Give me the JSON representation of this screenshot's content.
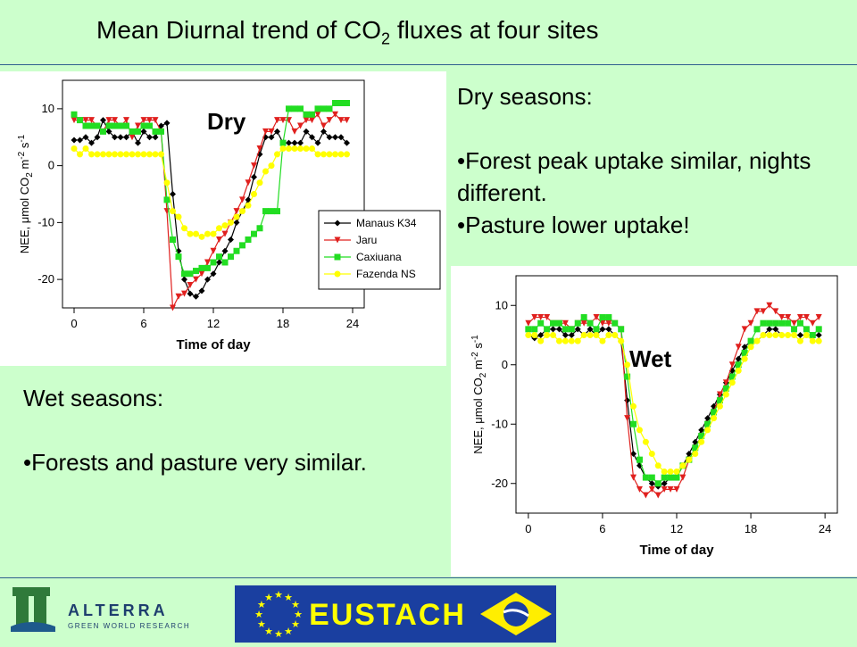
{
  "title": {
    "main": "Mean Diurnal trend of CO",
    "sub": "2",
    "rest": " fluxes at four sites"
  },
  "dry_text": {
    "heading": "Dry seasons:",
    "b1": "•Forest peak uptake similar, nights different.",
    "b2": "•Pasture lower uptake!"
  },
  "wet_text": {
    "heading": "Wet seasons:",
    "b1": "•Forests and pasture very similar."
  },
  "logos": {
    "alterra_name": "ALTERRA",
    "alterra_tagline": "GREEN WORLD RESEARCH",
    "eustach": "EUSTACH"
  },
  "colors": {
    "background": "#ccffcc",
    "rule": "#2e5e8e",
    "manaus": "#000000",
    "jaru": "#e0201e",
    "caxiuana": "#22dd22",
    "fazenda": "#ffff00",
    "eu_blue": "#1a3fa0",
    "eustach_text": "#ffff00"
  },
  "chart_data": [
    {
      "type": "line",
      "label": "Dry",
      "xlabel": "Time of day",
      "ylabel_parts": {
        "a": "NEE,  ",
        "b": "μ",
        "c": "mol CO",
        "d": "2",
        "e": " m",
        "f": "-2",
        "g": " s",
        "h": "-1"
      },
      "xticks": [
        0,
        6,
        12,
        18,
        24
      ],
      "yticks": [
        10,
        0,
        -10,
        -20
      ],
      "xlim": [
        -1,
        25
      ],
      "ylim": [
        -25,
        15
      ],
      "legend": [
        "Manaus K34",
        "Jaru",
        "Caxiuana",
        "Fazenda NS"
      ],
      "legend_position": "right",
      "x": [
        0,
        0.5,
        1,
        1.5,
        2,
        2.5,
        3,
        3.5,
        4,
        4.5,
        5,
        5.5,
        6,
        6.5,
        7,
        7.5,
        8,
        8.5,
        9,
        9.5,
        10,
        10.5,
        11,
        11.5,
        12,
        12.5,
        13,
        13.5,
        14,
        14.5,
        15,
        15.5,
        16,
        16.5,
        17,
        17.5,
        18,
        18.5,
        19,
        19.5,
        20,
        20.5,
        21,
        21.5,
        22,
        22.5,
        23,
        23.5
      ],
      "series": [
        {
          "name": "Manaus K34",
          "marker": "diamond",
          "values": [
            4.5,
            4.5,
            5,
            4,
            5,
            8,
            6,
            5,
            5,
            5,
            6,
            4,
            6,
            5,
            5,
            7,
            7.5,
            -5,
            -15,
            -20,
            -22.5,
            -23,
            -22,
            -20,
            -19,
            -17,
            -15,
            -13,
            -10,
            -8,
            -6,
            -2,
            2,
            5,
            5,
            6,
            4,
            4,
            4,
            4,
            6,
            5,
            4,
            6,
            5,
            5,
            5,
            4
          ]
        },
        {
          "name": "Jaru",
          "marker": "triangle",
          "values": [
            8,
            8,
            8,
            8,
            7,
            6,
            8,
            8,
            7,
            8,
            5,
            7,
            8,
            8,
            8,
            6,
            -8,
            -25,
            -23,
            -22.5,
            -21,
            -20,
            -19,
            -17,
            -15,
            -13,
            -12,
            -10,
            -8,
            -6,
            -3,
            0,
            3,
            6,
            6,
            8,
            8,
            8,
            6,
            7,
            8,
            8,
            9,
            7,
            8,
            9,
            8,
            8
          ]
        },
        {
          "name": "Caxiuana",
          "marker": "square",
          "values": [
            9,
            8,
            7,
            7,
            7,
            6,
            7,
            7,
            7,
            7,
            6,
            6,
            7,
            7,
            6,
            6,
            -6,
            -13,
            -16,
            -19,
            -19,
            -18.5,
            -18,
            -18,
            -17,
            -16,
            -17,
            -16,
            -15,
            -14,
            -13,
            -12,
            -11,
            -8,
            -8,
            -8,
            4,
            10,
            10,
            10,
            9,
            9,
            10,
            10,
            10,
            11,
            11,
            11
          ]
        },
        {
          "name": "Fazenda NS",
          "marker": "circle",
          "values": [
            3,
            2,
            3,
            2,
            2,
            2,
            2,
            2,
            2,
            2,
            2,
            2,
            2,
            2,
            2,
            2,
            -3,
            -8,
            -9,
            -11,
            -12,
            -12,
            -12.5,
            -12,
            -12,
            -11,
            -10.5,
            -10,
            -9,
            -8,
            -7,
            -5,
            -3,
            -1,
            0,
            2,
            3,
            3,
            3,
            3,
            3,
            3,
            2,
            2,
            2,
            2,
            2,
            2
          ]
        }
      ]
    },
    {
      "type": "line",
      "label": "Wet",
      "xlabel": "Time of day",
      "ylabel_parts": {
        "a": "NEE,  ",
        "b": "μ",
        "c": "mol CO",
        "d": "2",
        "e": " m",
        "f": "-2",
        "g": " s",
        "h": "-1"
      },
      "xticks": [
        0,
        6,
        12,
        18,
        24
      ],
      "yticks": [
        10,
        0,
        -10,
        -20
      ],
      "xlim": [
        -1,
        25
      ],
      "ylim": [
        -25,
        15
      ],
      "x": [
        0,
        0.5,
        1,
        1.5,
        2,
        2.5,
        3,
        3.5,
        4,
        4.5,
        5,
        5.5,
        6,
        6.5,
        7,
        7.5,
        8,
        8.5,
        9,
        9.5,
        10,
        10.5,
        11,
        11.5,
        12,
        12.5,
        13,
        13.5,
        14,
        14.5,
        15,
        15.5,
        16,
        16.5,
        17,
        17.5,
        18,
        18.5,
        19,
        19.5,
        20,
        20.5,
        21,
        21.5,
        22,
        22.5,
        23,
        23.5
      ],
      "series": [
        {
          "name": "Manaus K34",
          "marker": "diamond",
          "values": [
            5,
            4.5,
            5,
            6,
            6,
            6,
            5,
            5,
            6,
            5,
            6,
            5,
            6,
            6,
            5,
            4,
            -6,
            -15,
            -17,
            -19,
            -20,
            -20.5,
            -20,
            -19,
            -19,
            -17,
            -15,
            -13,
            -11,
            -9,
            -7,
            -5,
            -3,
            -1,
            1,
            3,
            4,
            4,
            5,
            6,
            6,
            5,
            5,
            5,
            5,
            5,
            5,
            5
          ]
        },
        {
          "name": "Jaru",
          "marker": "triangle",
          "values": [
            7,
            8,
            8,
            8,
            7,
            7,
            7,
            6,
            7,
            7,
            7,
            8,
            7,
            7,
            7,
            6,
            -9,
            -19,
            -21,
            -22,
            -21,
            -22,
            -21,
            -21,
            -21,
            -19,
            -16,
            -14,
            -12,
            -10,
            -8,
            -5,
            -3,
            0,
            3,
            6,
            7,
            9,
            9,
            10,
            9,
            8,
            8,
            7,
            8,
            8,
            7,
            8
          ]
        },
        {
          "name": "Caxiuana",
          "marker": "square",
          "values": [
            6,
            6,
            7,
            6,
            7,
            7,
            6,
            6,
            7,
            8,
            7,
            6,
            8,
            8,
            7,
            6,
            -2,
            -10,
            -16,
            -19,
            -19,
            -20,
            -19,
            -19,
            -19,
            -17,
            -16,
            -14,
            -12,
            -10,
            -8,
            -6,
            -4,
            -2,
            0,
            2,
            4,
            6,
            7,
            7,
            7,
            7,
            7,
            6,
            7,
            6,
            5,
            6
          ]
        },
        {
          "name": "Fazenda NS",
          "marker": "circle",
          "values": [
            5,
            5,
            4,
            5,
            5,
            4,
            4,
            4,
            4,
            5,
            5,
            5,
            4,
            5,
            5,
            4,
            0,
            -7,
            -11,
            -13,
            -15,
            -17,
            -18,
            -18,
            -18,
            -17,
            -16,
            -15,
            -13,
            -11,
            -9,
            -7,
            -5,
            -3,
            -1,
            1,
            3,
            4,
            5,
            5,
            5,
            5,
            5,
            5,
            4,
            5,
            4,
            4
          ]
        }
      ]
    }
  ]
}
